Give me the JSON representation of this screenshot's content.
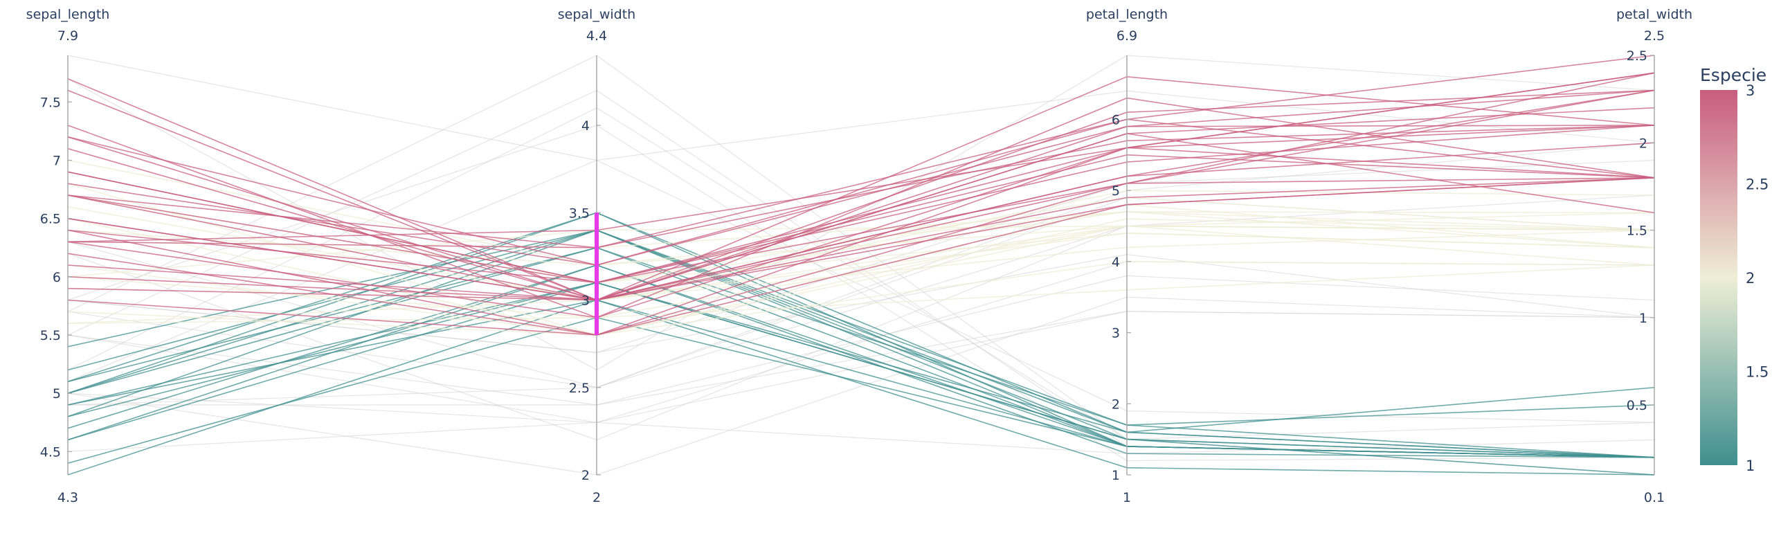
{
  "chart_data": {
    "type": "parallel_coordinates",
    "dimensions": [
      {
        "label": "sepal_length",
        "range": [
          4.3,
          7.9
        ],
        "ticks": [
          4.5,
          5,
          5.5,
          6,
          6.5,
          7,
          7.5
        ],
        "tick_labels": [
          "4.5",
          "5",
          "5.5",
          "6",
          "6.5",
          "7",
          "7.5"
        ],
        "min_label": "4.3",
        "max_label": "7.9"
      },
      {
        "label": "sepal_width",
        "range": [
          2,
          4.4
        ],
        "ticks": [
          2,
          2.5,
          3,
          3.5,
          4
        ],
        "tick_labels": [
          "2",
          "2.5",
          "3",
          "3.5",
          "4"
        ],
        "min_label": "2",
        "max_label": "4.4",
        "constraint": [
          2.8,
          3.5
        ]
      },
      {
        "label": "petal_length",
        "range": [
          1,
          6.9
        ],
        "ticks": [
          1,
          2,
          3,
          4,
          5,
          6
        ],
        "tick_labels": [
          "1",
          "2",
          "3",
          "4",
          "5",
          "6"
        ],
        "min_label": "1",
        "max_label": "6.9"
      },
      {
        "label": "petal_width",
        "range": [
          0.1,
          2.5
        ],
        "ticks": [
          0.5,
          1,
          1.5,
          2,
          2.5
        ],
        "tick_labels": [
          "0.5",
          "1",
          "1.5",
          "2",
          "2.5"
        ],
        "min_label": "0.1",
        "max_label": "2.5"
      }
    ],
    "colorbar": {
      "title": "Especie",
      "range": [
        1,
        3
      ],
      "ticks": [
        1,
        1.5,
        2,
        2.5,
        3
      ],
      "tick_labels": [
        "1",
        "1.5",
        "2",
        "2.5",
        "3"
      ],
      "colorscale": [
        "#3f8f8f",
        "#eeeed6",
        "#c85c7f"
      ]
    },
    "constraint_color": "#e63be6",
    "dimmed_line_color": "#cfcfcf",
    "lines": [
      [
        5.1,
        3.5,
        1.4,
        0.2,
        1
      ],
      [
        4.9,
        3.0,
        1.4,
        0.2,
        1
      ],
      [
        4.7,
        3.2,
        1.3,
        0.2,
        1
      ],
      [
        4.6,
        3.1,
        1.5,
        0.2,
        1
      ],
      [
        5.0,
        3.4,
        1.5,
        0.2,
        1
      ],
      [
        4.4,
        2.9,
        1.4,
        0.2,
        1
      ],
      [
        4.8,
        3.4,
        1.6,
        0.2,
        1
      ],
      [
        4.3,
        3.0,
        1.1,
        0.1,
        1
      ],
      [
        5.4,
        3.4,
        1.7,
        0.2,
        1
      ],
      [
        5.1,
        3.3,
        1.7,
        0.5,
        1
      ],
      [
        4.8,
        3.1,
        1.6,
        0.2,
        1
      ],
      [
        5.2,
        3.4,
        1.4,
        0.2,
        1
      ],
      [
        4.6,
        3.2,
        1.4,
        0.2,
        1
      ],
      [
        5.0,
        3.3,
        1.4,
        0.2,
        1
      ],
      [
        4.5,
        2.3,
        1.3,
        0.3,
        1
      ],
      [
        5.8,
        4.0,
        1.2,
        0.2,
        1
      ],
      [
        5.7,
        4.4,
        1.5,
        0.4,
        1
      ],
      [
        5.2,
        4.1,
        1.5,
        0.1,
        1
      ],
      [
        5.5,
        4.2,
        1.4,
        0.2,
        1
      ],
      [
        5.1,
        3.8,
        1.9,
        0.4,
        1
      ],
      [
        5.0,
        3.5,
        1.6,
        0.6,
        1
      ],
      [
        4.9,
        3.1,
        1.5,
        0.1,
        1
      ],
      [
        7.0,
        3.2,
        4.7,
        1.4,
        2
      ],
      [
        6.4,
        3.2,
        4.5,
        1.5,
        2
      ],
      [
        6.9,
        3.1,
        4.9,
        1.5,
        2
      ],
      [
        6.3,
        3.3,
        4.7,
        1.6,
        2
      ],
      [
        5.9,
        3.0,
        4.2,
        1.5,
        2
      ],
      [
        6.0,
        2.9,
        4.5,
        1.5,
        2
      ],
      [
        5.6,
        2.9,
        3.6,
        1.3,
        2
      ],
      [
        6.7,
        3.1,
        4.4,
        1.4,
        2
      ],
      [
        5.6,
        3.0,
        4.5,
        1.5,
        2
      ],
      [
        6.1,
        2.8,
        4.0,
        1.3,
        2
      ],
      [
        6.6,
        3.0,
        4.4,
        1.4,
        2
      ],
      [
        6.8,
        2.8,
        4.8,
        1.4,
        2
      ],
      [
        6.7,
        3.0,
        5.0,
        1.7,
        2
      ],
      [
        6.0,
        3.4,
        4.5,
        1.6,
        2
      ],
      [
        6.7,
        3.1,
        4.7,
        1.5,
        2
      ],
      [
        5.5,
        2.3,
        4.0,
        1.3,
        2
      ],
      [
        6.5,
        2.8,
        4.6,
        1.5,
        2
      ],
      [
        5.7,
        2.8,
        4.5,
        1.3,
        2
      ],
      [
        4.9,
        2.4,
        3.3,
        1.0,
        2
      ],
      [
        5.0,
        2.0,
        3.5,
        1.0,
        2
      ],
      [
        6.2,
        2.2,
        4.5,
        1.5,
        2
      ],
      [
        5.8,
        2.7,
        4.1,
        1.0,
        2
      ],
      [
        5.5,
        2.4,
        3.8,
        1.1,
        2
      ],
      [
        6.3,
        2.5,
        4.9,
        1.5,
        2
      ],
      [
        5.0,
        2.3,
        3.3,
        1.0,
        2
      ],
      [
        6.3,
        3.3,
        6.0,
        2.5,
        3
      ],
      [
        5.8,
        2.8,
        5.1,
        2.4,
        3
      ],
      [
        7.1,
        3.0,
        5.9,
        2.1,
        3
      ],
      [
        6.3,
        2.9,
        5.6,
        1.8,
        3
      ],
      [
        6.5,
        3.0,
        5.8,
        2.2,
        3
      ],
      [
        7.6,
        3.0,
        6.6,
        2.1,
        3
      ],
      [
        7.3,
        2.9,
        6.3,
        1.8,
        3
      ],
      [
        6.7,
        3.3,
        5.7,
        2.1,
        3
      ],
      [
        7.2,
        3.2,
        6.0,
        1.8,
        3
      ],
      [
        6.2,
        2.8,
        4.8,
        1.8,
        3
      ],
      [
        6.1,
        3.0,
        4.9,
        1.8,
        3
      ],
      [
        6.4,
        2.8,
        5.6,
        2.1,
        3
      ],
      [
        7.2,
        3.0,
        5.8,
        1.6,
        3
      ],
      [
        7.7,
        3.0,
        6.1,
        2.3,
        3
      ],
      [
        6.3,
        3.4,
        5.6,
        2.4,
        3
      ],
      [
        6.4,
        3.1,
        5.5,
        1.8,
        3
      ],
      [
        6.0,
        3.0,
        4.8,
        1.8,
        3
      ],
      [
        6.9,
        3.1,
        5.4,
        2.1,
        3
      ],
      [
        6.7,
        3.1,
        5.6,
        2.4,
        3
      ],
      [
        6.9,
        3.1,
        5.1,
        2.3,
        3
      ],
      [
        5.8,
        2.7,
        5.1,
        1.9,
        3
      ],
      [
        6.8,
        3.2,
        5.9,
        2.3,
        3
      ],
      [
        6.7,
        3.0,
        5.2,
        2.3,
        3
      ],
      [
        6.5,
        3.0,
        5.2,
        2.0,
        3
      ],
      [
        5.9,
        3.0,
        5.1,
        1.8,
        3
      ],
      [
        7.7,
        2.6,
        6.9,
        2.3,
        3
      ],
      [
        4.9,
        2.5,
        4.5,
        1.7,
        3
      ],
      [
        7.9,
        3.8,
        6.4,
        2.0,
        3
      ],
      [
        5.7,
        2.5,
        5.0,
        2.0,
        3
      ]
    ]
  }
}
